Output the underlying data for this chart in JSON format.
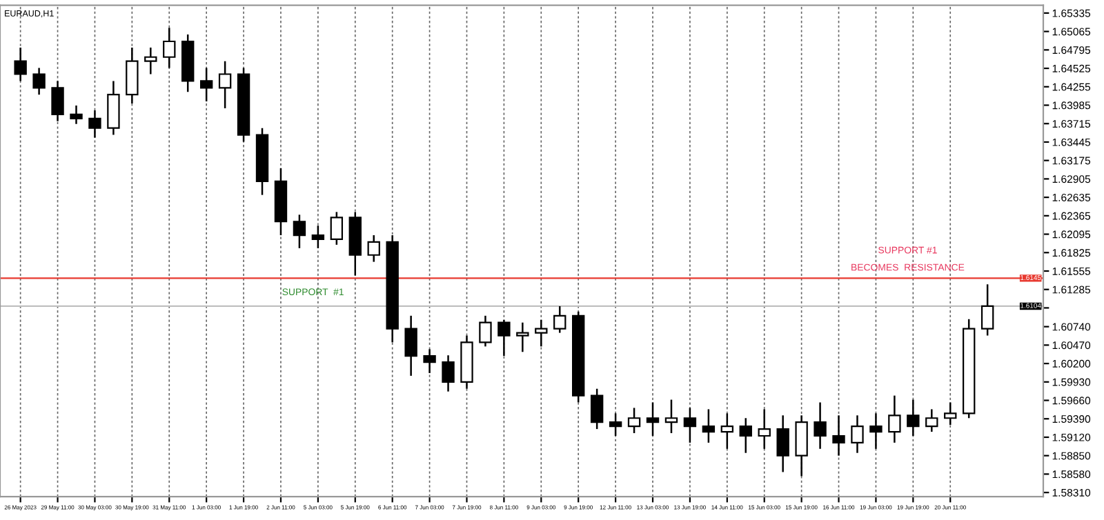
{
  "chart_data": {
    "type": "candlestick",
    "title": "EURAUD,H1",
    "categories": [
      "26 May 2023",
      null,
      "29 May 11:00",
      null,
      "30 May 03:00",
      null,
      "30 May 19:00",
      null,
      "31 May 11:00",
      null,
      "1 Jun 03:00",
      null,
      "1 Jun 19:00",
      null,
      "2 Jun 11:00",
      null,
      "5 Jun 03:00",
      null,
      "5 Jun 19:00",
      null,
      "6 Jun 11:00",
      null,
      "7 Jun 03:00",
      null,
      "7 Jun 19:00",
      null,
      "8 Jun 11:00",
      null,
      "9 Jun 03:00",
      null,
      "9 Jun 19:00",
      null,
      "12 Jun 11:00",
      null,
      "13 Jun 03:00",
      null,
      "13 Jun 19:00",
      null,
      "14 Jun 11:00",
      null,
      "15 Jun 03:00",
      null,
      "15 Jun 19:00",
      null,
      "16 Jun 11:00",
      null,
      "19 Jun 03:00",
      null,
      "19 Jun 19:00",
      null,
      "20 Jun 11:00",
      null,
      null
    ],
    "series": [
      {
        "color": "#000000",
        "ohlc": [
          [
            1.6463,
            1.6483,
            1.6434,
            1.6444
          ],
          [
            1.6444,
            1.6453,
            1.6414,
            1.6424
          ],
          [
            1.6424,
            1.6434,
            1.6375,
            1.6385
          ],
          [
            1.6385,
            1.6398,
            1.6371,
            1.6379
          ],
          [
            1.6379,
            1.6391,
            1.6351,
            1.6365
          ],
          [
            1.6365,
            1.6434,
            1.6355,
            1.6414
          ],
          [
            1.6414,
            1.6483,
            1.6401,
            1.6463
          ],
          [
            1.6463,
            1.6483,
            1.6444,
            1.6469
          ],
          [
            1.6469,
            1.6512,
            1.6453,
            1.6492
          ],
          [
            1.6492,
            1.6502,
            1.6418,
            1.6434
          ],
          [
            1.6434,
            1.6453,
            1.6404,
            1.6424
          ],
          [
            1.6424,
            1.6463,
            1.6394,
            1.6444
          ],
          [
            1.6444,
            1.6453,
            1.6345,
            1.6355
          ],
          [
            1.6355,
            1.6365,
            1.6267,
            1.6287
          ],
          [
            1.6287,
            1.6306,
            1.6208,
            1.6228
          ],
          [
            1.6228,
            1.6238,
            1.6189,
            1.6208
          ],
          [
            1.6208,
            1.6222,
            1.6189,
            1.6202
          ],
          [
            1.6202,
            1.6242,
            1.6194,
            1.6234
          ],
          [
            1.6234,
            1.6242,
            1.6149,
            1.6179
          ],
          [
            1.6179,
            1.6208,
            1.6169,
            1.6198
          ],
          [
            1.6198,
            1.6208,
            1.6051,
            1.6071
          ],
          [
            1.6071,
            1.609,
            1.6002,
            1.6031
          ],
          [
            1.6031,
            1.6041,
            1.6006,
            1.6022
          ],
          [
            1.6022,
            1.6032,
            1.5979,
            1.5993
          ],
          [
            1.5993,
            1.6061,
            1.5983,
            1.6051
          ],
          [
            1.6051,
            1.609,
            1.6045,
            1.608
          ],
          [
            1.608,
            1.6084,
            1.6031,
            1.6061
          ],
          [
            1.6061,
            1.608,
            1.6037,
            1.6065
          ],
          [
            1.6065,
            1.6084,
            1.6045,
            1.6071
          ],
          [
            1.6071,
            1.6104,
            1.6065,
            1.609
          ],
          [
            1.609,
            1.6096,
            1.5963,
            1.5973
          ],
          [
            1.5973,
            1.5983,
            1.5924,
            1.5934
          ],
          [
            1.5934,
            1.5947,
            1.5914,
            1.5928
          ],
          [
            1.5928,
            1.5955,
            1.5918,
            1.594
          ],
          [
            1.594,
            1.5963,
            1.5914,
            1.5934
          ],
          [
            1.5934,
            1.5967,
            1.5918,
            1.594
          ],
          [
            1.594,
            1.5955,
            1.5904,
            1.5928
          ],
          [
            1.5928,
            1.5953,
            1.5904,
            1.592
          ],
          [
            1.592,
            1.5947,
            1.5895,
            1.5928
          ],
          [
            1.5928,
            1.594,
            1.5889,
            1.5914
          ],
          [
            1.5914,
            1.5953,
            1.5895,
            1.5924
          ],
          [
            1.5924,
            1.5944,
            1.5861,
            1.5885
          ],
          [
            1.5885,
            1.5944,
            1.5855,
            1.5934
          ],
          [
            1.5934,
            1.5963,
            1.5895,
            1.5914
          ],
          [
            1.5914,
            1.5944,
            1.5885,
            1.5904
          ],
          [
            1.5904,
            1.5944,
            1.5889,
            1.5928
          ],
          [
            1.5928,
            1.5947,
            1.5895,
            1.592
          ],
          [
            1.592,
            1.5973,
            1.5904,
            1.5944
          ],
          [
            1.5944,
            1.5967,
            1.5914,
            1.5928
          ],
          [
            1.5928,
            1.5953,
            1.592,
            1.594
          ],
          [
            1.594,
            1.5963,
            1.593,
            1.5947
          ],
          [
            1.5947,
            1.6085,
            1.594,
            1.6071
          ],
          [
            1.6071,
            1.6136,
            1.6061,
            1.6104
          ]
        ]
      }
    ],
    "ylim": [
      1.5825,
      1.6545
    ],
    "yticks": [
      {
        "value": 1.5831,
        "label": "1.58310"
      },
      {
        "value": 1.5858,
        "label": "1.58580"
      },
      {
        "value": 1.5885,
        "label": "1.58850"
      },
      {
        "value": 1.5912,
        "label": "1.59120"
      },
      {
        "value": 1.5939,
        "label": "1.59390"
      },
      {
        "value": 1.5966,
        "label": "1.59660"
      },
      {
        "value": 1.5993,
        "label": "1.59930"
      },
      {
        "value": 1.602,
        "label": "1.60200"
      },
      {
        "value": 1.6047,
        "label": "1.60470"
      },
      {
        "value": 1.6074,
        "label": "1.60740"
      },
      {
        "value": 1.61015,
        "label": null
      },
      {
        "value": 1.61285,
        "label": "1.61285"
      },
      {
        "value": 1.61555,
        "label": "1.61555"
      },
      {
        "value": 1.61825,
        "label": "1.61825"
      },
      {
        "value": 1.62095,
        "label": "1.62095"
      },
      {
        "value": 1.62365,
        "label": "1.62365"
      },
      {
        "value": 1.62635,
        "label": "1.62635"
      },
      {
        "value": 1.62905,
        "label": "1.62905"
      },
      {
        "value": 1.63175,
        "label": "1.63175"
      },
      {
        "value": 1.63445,
        "label": "1.63445"
      },
      {
        "value": 1.63715,
        "label": "1.63715"
      },
      {
        "value": 1.63985,
        "label": "1.63985"
      },
      {
        "value": 1.64255,
        "label": "1.64255"
      },
      {
        "value": 1.64525,
        "label": "1.64525"
      },
      {
        "value": 1.64795,
        "label": "1.64795"
      },
      {
        "value": 1.65065,
        "label": "1.65065"
      },
      {
        "value": 1.65335,
        "label": "1.65335"
      }
    ],
    "ref_lines": [
      {
        "axis": "y",
        "value": 1.6145,
        "label": "1.6145",
        "color": "#e8392f"
      },
      {
        "axis": "y",
        "value": 1.6104,
        "label": "1.6104",
        "color": "#c0c0c0"
      }
    ],
    "annotations": [
      "SUPPORT  #1",
      "SUPPORT #1",
      "BECOMES  RESISTANCE"
    ],
    "grid": "x",
    "legend": false
  }
}
